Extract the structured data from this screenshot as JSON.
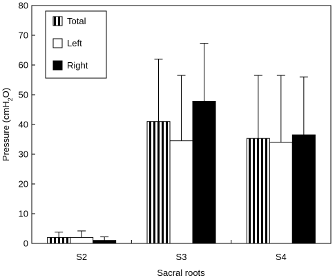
{
  "chart_data": {
    "type": "bar",
    "title": "",
    "xlabel": "Sacral roots",
    "ylabel": {
      "prefix": "Pressure (cmH",
      "subscript": "2",
      "suffix": "O)"
    },
    "ylim": [
      0,
      80
    ],
    "yticks": [
      "0",
      "10",
      "20",
      "30",
      "40",
      "50",
      "60",
      "70",
      "80"
    ],
    "categories": [
      "S2",
      "S3",
      "S4"
    ],
    "grid": false,
    "legend_position": "top-left",
    "series": [
      {
        "name": "Total",
        "fill": "vertical-stripes",
        "values": [
          2.0,
          41.0,
          35.3
        ],
        "error_upper": [
          3.8,
          62.0,
          56.5
        ]
      },
      {
        "name": "Left",
        "fill": "#ffffff",
        "values": [
          2.0,
          34.5,
          34.0
        ],
        "error_upper": [
          4.2,
          56.5,
          56.5
        ]
      },
      {
        "name": "Right",
        "fill": "#000000",
        "values": [
          1.0,
          47.8,
          36.5
        ],
        "error_upper": [
          2.2,
          67.3,
          56.0
        ]
      }
    ]
  }
}
